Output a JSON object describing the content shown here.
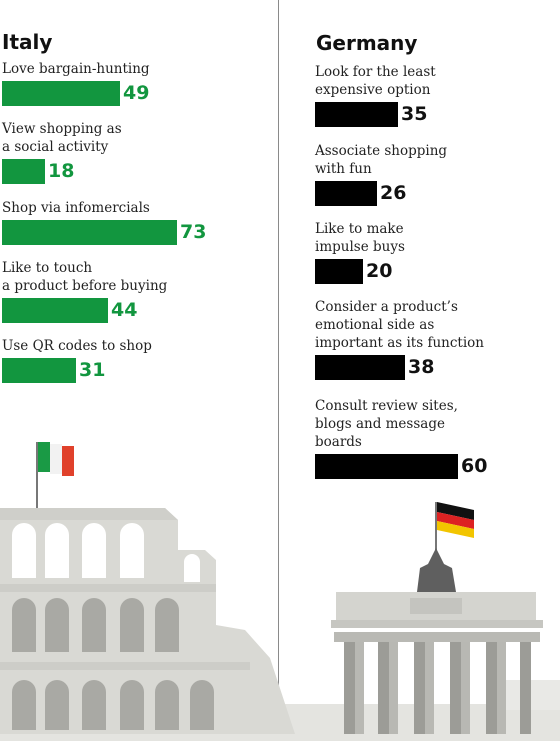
{
  "colors": {
    "italy_bar": "#12963f",
    "germany_bar": "#000000",
    "monument": "#d9d9d4",
    "ground": "#e4e4e0"
  },
  "chart_data": [
    {
      "type": "bar",
      "title": "Italy",
      "categories": [
        "Love bargain-hunting",
        "View shopping as a social activity",
        "Shop via infomercials",
        "Like to touch a product before buying",
        "Use QR codes to shop"
      ],
      "category_lines": [
        [
          "Love bargain-hunting"
        ],
        [
          "View shopping as",
          "a social activity"
        ],
        [
          "Shop via infomercials"
        ],
        [
          "Like to touch",
          "a product before buying"
        ],
        [
          "Use QR codes to shop"
        ]
      ],
      "values": [
        49,
        18,
        73,
        44,
        31
      ]
    },
    {
      "type": "bar",
      "title": "Germany",
      "categories": [
        "Look for the least expensive option",
        "Associate shopping with fun",
        "Like to make impulse buys",
        "Consider a product's emotional side as important as its function",
        "Consult review sites, blogs and message boards"
      ],
      "category_lines": [
        [
          "Look for the least",
          "expensive option"
        ],
        [
          "Associate shopping",
          "with fun"
        ],
        [
          "Like to make",
          "impulse buys"
        ],
        [
          "Consider a product’s",
          "emotional side as",
          "important as its function"
        ],
        [
          "Consult review sites,",
          "blogs and message",
          "boards"
        ]
      ],
      "values": [
        35,
        26,
        20,
        38,
        60
      ]
    }
  ],
  "illustration": {
    "left": {
      "monument": "arena-icon",
      "flag": "italian-flag-icon"
    },
    "right": {
      "monument": "brandenburg-gate-icon",
      "flag": "german-flag-icon"
    }
  }
}
